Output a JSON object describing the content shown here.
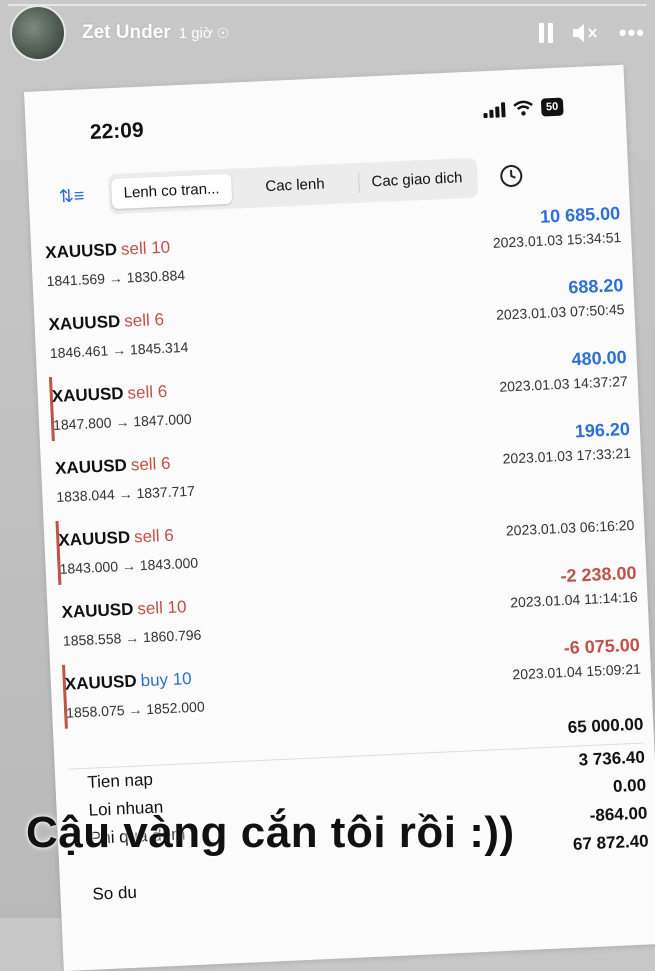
{
  "story": {
    "user_name": "Zet Under",
    "time_ago": "1 giờ",
    "icons": [
      "globe-icon",
      "pause-icon",
      "mute-icon",
      "more-icon"
    ]
  },
  "screenshot": {
    "status_bar": {
      "clock": "22:09",
      "battery": "50"
    },
    "tabs": [
      {
        "label": "Lenh co tran...",
        "active": true
      },
      {
        "label": "Cac lenh",
        "active": false
      },
      {
        "label": "Cac giao dich",
        "active": false
      }
    ],
    "trades": [
      {
        "symbol": "XAUUSD",
        "side": "sell 10",
        "side_type": "sell",
        "prices": "1841.569 → 1830.884",
        "profit": "10 685.00",
        "datetime": "2023.01.03 15:34:51",
        "marked": false
      },
      {
        "symbol": "XAUUSD",
        "side": "sell 6",
        "side_type": "sell",
        "prices": "1846.461 → 1845.314",
        "profit": "688.20",
        "datetime": "2023.01.03 07:50:45",
        "marked": false
      },
      {
        "symbol": "XAUUSD",
        "side": "sell 6",
        "side_type": "sell",
        "prices": "1847.800 → 1847.000",
        "profit": "480.00",
        "datetime": "2023.01.03 14:37:27",
        "marked": true
      },
      {
        "symbol": "XAUUSD",
        "side": "sell 6",
        "side_type": "sell",
        "prices": "1838.044 → 1837.717",
        "profit": "196.20",
        "datetime": "2023.01.03 17:33:21",
        "marked": false
      },
      {
        "symbol": "XAUUSD",
        "side": "sell 6",
        "side_type": "sell",
        "prices": "1843.000 → 1843.000",
        "profit": "",
        "datetime": "2023.01.03 06:16:20",
        "marked": true
      },
      {
        "symbol": "XAUUSD",
        "side": "sell 10",
        "side_type": "sell",
        "prices": "1858.558 → 1860.796",
        "profit": "-2 238.00",
        "datetime": "2023.01.04 11:14:16",
        "marked": false
      },
      {
        "symbol": "XAUUSD",
        "side": "buy 10",
        "side_type": "buy",
        "prices": "1858.075 → 1852.000",
        "profit": "-6 075.00",
        "datetime": "2023.01.04 15:09:21",
        "marked": true
      }
    ],
    "summary": {
      "top_value": "65 000.00",
      "rows": [
        {
          "label": "Tien nap",
          "value": "3 736.40"
        },
        {
          "label": "Loi nhuan",
          "value": "0.00"
        },
        {
          "label": "Phi qua dem",
          "value": "-864.00"
        },
        {
          "label": "",
          "value": "67 872.40"
        },
        {
          "label": "So du",
          "value": ""
        }
      ]
    },
    "colors": {
      "positive": "#2d6fd6",
      "negative": "#c0524a"
    }
  },
  "caption": "Cậu vàng cắn tôi rồi :))"
}
